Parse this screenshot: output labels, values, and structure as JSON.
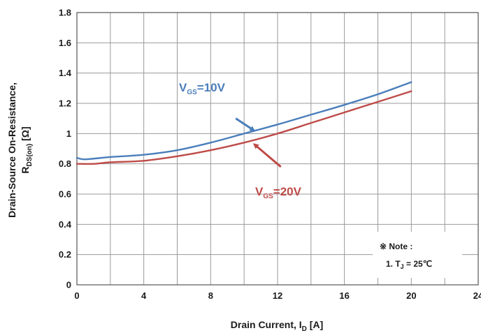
{
  "chart_data": {
    "type": "line",
    "xlabel": {
      "main": "Drain Current, I",
      "sub": "D",
      "tail": " [A]"
    },
    "ylabel": {
      "line1": "Drain-Source On-Resistance,",
      "line2_main": "R",
      "line2_sub": "DS(on)",
      "line2_tail": " [Ω]"
    },
    "xlim": [
      0,
      24
    ],
    "ylim": [
      0,
      1.8
    ],
    "x_ticks": [
      0,
      4,
      8,
      12,
      16,
      20,
      24
    ],
    "x_tick_labels": [
      "0",
      "4",
      "8",
      "12",
      "16",
      "20",
      "24"
    ],
    "y_ticks": [
      0,
      0.2,
      0.4,
      0.6,
      0.8,
      1.0,
      1.2,
      1.4,
      1.6,
      1.8
    ],
    "y_tick_labels": [
      "0",
      "0.2",
      "0.4",
      "0.6",
      "0.8",
      "1",
      "1.2",
      "1.4",
      "1.6",
      "1.8"
    ],
    "x_minor_step": 2,
    "grid": true,
    "series": [
      {
        "name": "VGS=10V",
        "label_main": "V",
        "label_sub": "GS",
        "label_tail": "=10V",
        "color": "#4a7ebb",
        "x": [
          0,
          0.5,
          2,
          4,
          6,
          8,
          10,
          12,
          14,
          16,
          18,
          20
        ],
        "y": [
          0.84,
          0.83,
          0.845,
          0.86,
          0.89,
          0.94,
          1.0,
          1.06,
          1.125,
          1.19,
          1.26,
          1.34
        ]
      },
      {
        "name": "VGS=20V",
        "label_main": "V",
        "label_sub": "GS",
        "label_tail": "=20V",
        "color": "#be4b48",
        "x": [
          0,
          1,
          2,
          4,
          6,
          8,
          10,
          12,
          14,
          16,
          18,
          20
        ],
        "y": [
          0.8,
          0.8,
          0.81,
          0.82,
          0.85,
          0.89,
          0.94,
          1.0,
          1.07,
          1.14,
          1.21,
          1.28
        ]
      }
    ],
    "annotations": {
      "vgs10_arrow": {
        "from": [
          9.5,
          1.1
        ],
        "to": [
          10.6,
          1.02
        ]
      },
      "vgs20_arrow": {
        "from": [
          12.2,
          0.78
        ],
        "to": [
          10.6,
          0.93
        ]
      }
    },
    "note": {
      "title": "※ Note :",
      "item_prefix": "1. T",
      "item_sub": "J",
      "item_tail": " = 25℃"
    }
  }
}
